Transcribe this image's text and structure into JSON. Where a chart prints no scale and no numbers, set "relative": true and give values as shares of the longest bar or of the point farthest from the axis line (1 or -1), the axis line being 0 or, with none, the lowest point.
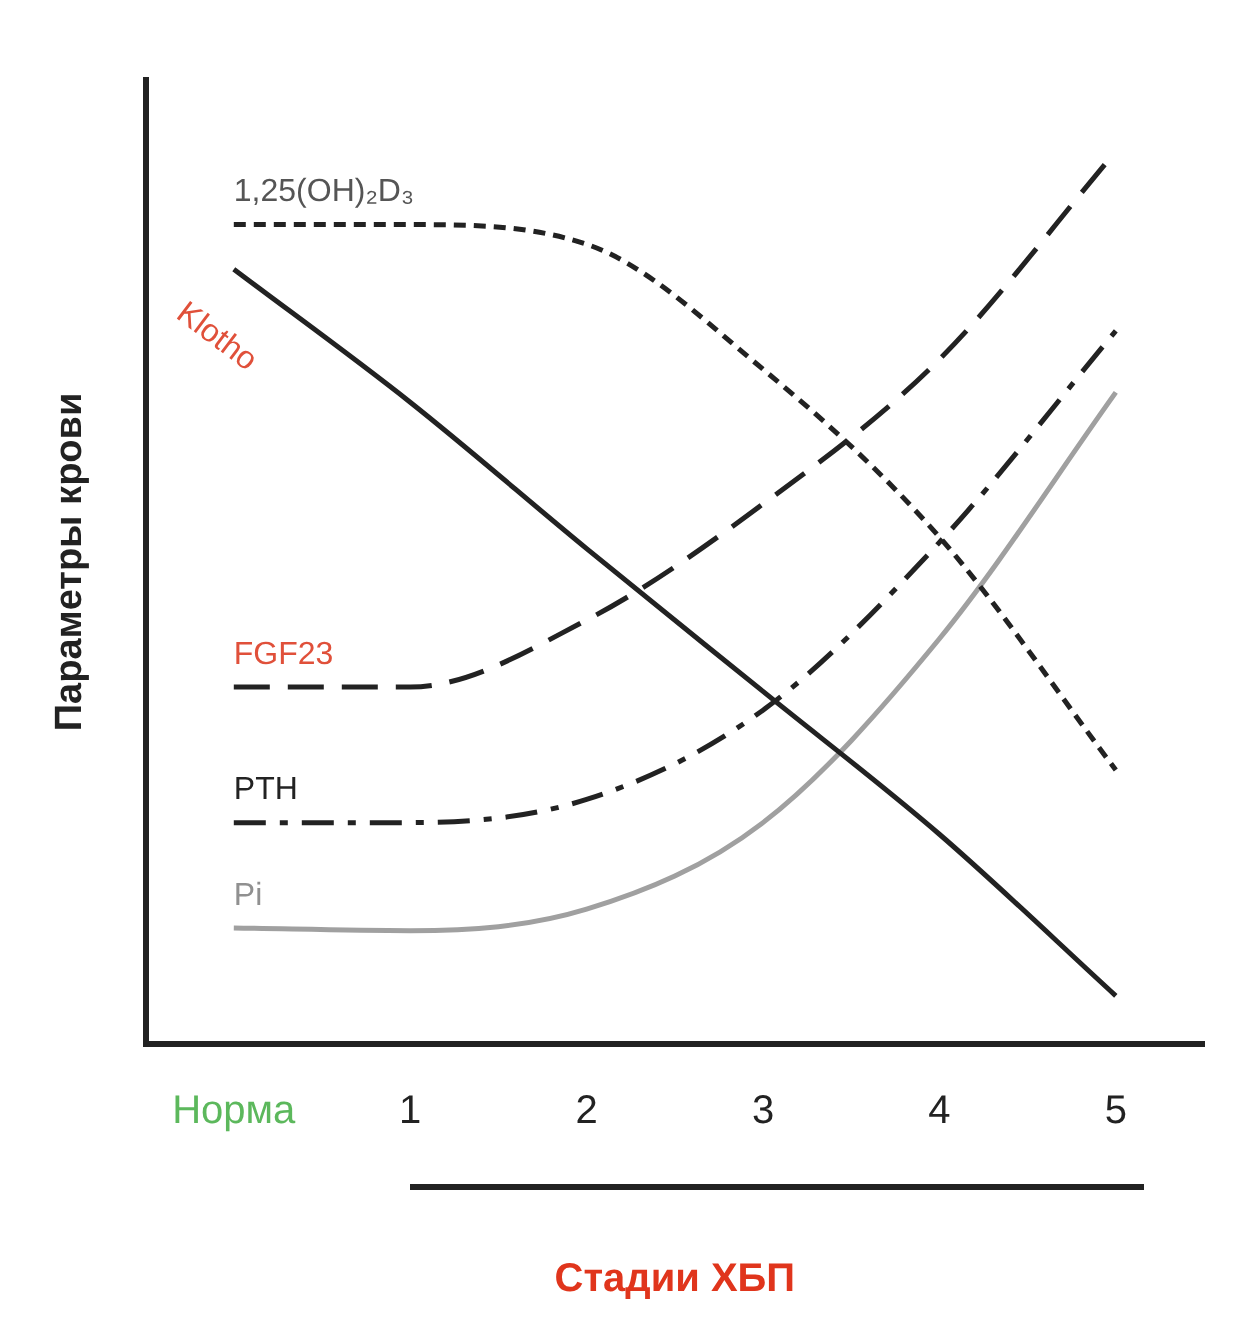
{
  "chart_data": {
    "type": "line",
    "relative": true,
    "ylabel": "Параметры крови",
    "xlabel": "Стадии ХБП",
    "categories": [
      "Норма",
      "1",
      "2",
      "3",
      "4",
      "5"
    ],
    "series": [
      {
        "name": "1,25(OH)₂D₃",
        "color": "#222222",
        "line_style": "dotted",
        "values": [
          0.918,
          0.918,
          0.896,
          0.756,
          0.568,
          0.307
        ]
      },
      {
        "name": "Klotho",
        "color": "#222222",
        "line_style": "solid",
        "values": [
          0.868,
          0.719,
          0.555,
          0.395,
          0.235,
          0.054
        ]
      },
      {
        "name": "FGF23",
        "color": "#222222",
        "line_style": "dashed",
        "values": [
          0.4,
          0.4,
          0.475,
          0.605,
          0.767,
          1
        ]
      },
      {
        "name": "PTH",
        "color": "#222222",
        "line_style": "dashdot",
        "values": [
          0.248,
          0.248,
          0.274,
          0.374,
          0.562,
          0.799
        ]
      },
      {
        "name": "Pi",
        "color": "#a0a0a0",
        "line_style": "solid",
        "values": [
          0.13,
          0.127,
          0.151,
          0.248,
          0.454,
          0.73
        ]
      }
    ],
    "legend": false,
    "grid": false,
    "tick_labels": "x",
    "marker": "none"
  }
}
